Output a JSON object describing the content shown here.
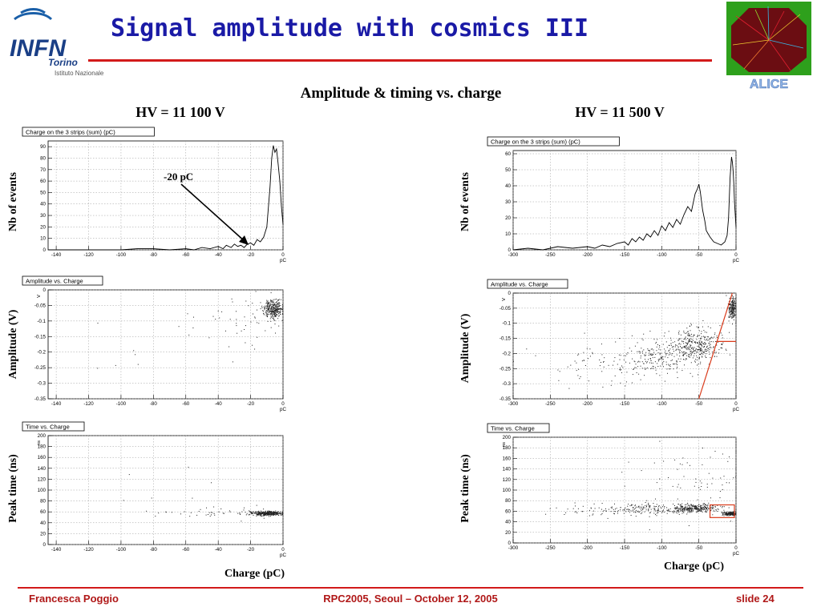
{
  "slide": {
    "title": "Signal amplitude with cosmics III",
    "header_center": "Amplitude & timing vs. charge",
    "hv_left": "HV = 11 100 V",
    "hv_right": "HV = 11 500 V",
    "annotation": "-20 pC",
    "ylabel_events": "Nb of events",
    "ylabel_amplitude": "Amplitude (V)",
    "ylabel_time": "Peak time (ns)",
    "xlabel_charge": "Charge (pC)",
    "footer_author": "Francesca Poggio",
    "footer_conference": "RPC2005, Seoul – October 12, 2005",
    "footer_slide": "slide 24",
    "logo_infn": "INFN Torino Istituto Nazionale",
    "logo_alice": "ALICE"
  },
  "colors": {
    "title": "#1a1aa6",
    "accent_red": "#d21a1a",
    "footer": "#b01818",
    "plot_line": "#000000",
    "box_red": "#d93a1a"
  },
  "chart_data": [
    {
      "id": "hist_left",
      "type": "line",
      "title": "Charge on the 3 strips (sum)  (pC)",
      "xlabel": "pC",
      "ylabel": "",
      "xlim": [
        -145,
        0
      ],
      "ylim": [
        0,
        95
      ],
      "xticks": [
        -140,
        -120,
        -100,
        -80,
        -60,
        -40,
        -20,
        0
      ],
      "yticks": [
        0,
        10,
        20,
        30,
        40,
        50,
        60,
        70,
        80,
        90
      ],
      "grid": true,
      "x": [
        -145,
        -130,
        -115,
        -100,
        -90,
        -80,
        -70,
        -60,
        -55,
        -50,
        -45,
        -40,
        -37,
        -35,
        -32,
        -30,
        -28,
        -26,
        -24,
        -22,
        -20,
        -18,
        -16,
        -14,
        -12,
        -10,
        -8,
        -7,
        -6,
        -5,
        -4,
        -3,
        -2,
        -1,
        0
      ],
      "y": [
        0,
        0,
        0,
        0,
        1,
        1,
        0,
        1,
        0,
        2,
        1,
        3,
        1,
        4,
        2,
        5,
        3,
        4,
        2,
        5,
        6,
        4,
        9,
        7,
        11,
        20,
        55,
        80,
        91,
        85,
        88,
        75,
        60,
        38,
        22
      ]
    },
    {
      "id": "hist_right",
      "type": "line",
      "title": "Charge on the 3 strips (sum)  (pC)",
      "xlabel": "pC",
      "ylabel": "",
      "xlim": [
        -300,
        0
      ],
      "ylim": [
        0,
        62
      ],
      "xticks": [
        -300,
        -250,
        -200,
        -150,
        -100,
        -50,
        0
      ],
      "yticks": [
        0,
        10,
        20,
        30,
        40,
        50,
        60
      ],
      "grid": true,
      "x": [
        -300,
        -280,
        -260,
        -240,
        -220,
        -200,
        -190,
        -180,
        -170,
        -160,
        -150,
        -145,
        -140,
        -135,
        -130,
        -125,
        -120,
        -115,
        -110,
        -105,
        -100,
        -95,
        -90,
        -85,
        -80,
        -75,
        -70,
        -65,
        -60,
        -55,
        -52,
        -50,
        -48,
        -45,
        -42,
        -40,
        -35,
        -30,
        -25,
        -20,
        -15,
        -12,
        -10,
        -8,
        -6,
        -5,
        -4,
        -3,
        -2,
        0
      ],
      "y": [
        0,
        1,
        0,
        2,
        1,
        2,
        1,
        3,
        2,
        4,
        5,
        3,
        7,
        5,
        8,
        6,
        10,
        8,
        12,
        9,
        15,
        12,
        17,
        14,
        19,
        16,
        22,
        27,
        24,
        35,
        38,
        41,
        36,
        25,
        18,
        12,
        8,
        5,
        4,
        3,
        5,
        9,
        20,
        45,
        58,
        55,
        50,
        42,
        30,
        14
      ]
    },
    {
      "id": "amp_left",
      "type": "scatter",
      "title": "Amplitude vs. Charge",
      "xlabel": "pC",
      "ylabel": "V",
      "xlim": [
        -145,
        0
      ],
      "ylim": [
        -0.35,
        0
      ],
      "xticks": [
        -140,
        -120,
        -100,
        -80,
        -60,
        -40,
        -20,
        0
      ],
      "yticks": [
        0,
        -0.05,
        -0.1,
        -0.15,
        -0.2,
        -0.25,
        -0.3,
        -0.35
      ],
      "grid": true,
      "clusters": [
        {
          "cx": -6,
          "cy": -0.06,
          "sx": 3,
          "sy": 0.015,
          "n": 320
        },
        {
          "cx": -25,
          "cy": -0.1,
          "sx": 14,
          "sy": 0.04,
          "n": 45
        },
        {
          "cx": -70,
          "cy": -0.15,
          "sx": 30,
          "sy": 0.06,
          "n": 12
        }
      ]
    },
    {
      "id": "amp_right",
      "type": "scatter",
      "title": "Amplitude vs. Charge",
      "xlabel": "pC",
      "ylabel": "V",
      "xlim": [
        -300,
        0
      ],
      "ylim": [
        -0.35,
        0
      ],
      "xticks": [
        -300,
        -250,
        -200,
        -150,
        -100,
        -50,
        0
      ],
      "yticks": [
        0,
        -0.05,
        -0.1,
        -0.15,
        -0.2,
        -0.25,
        -0.3,
        -0.35
      ],
      "grid": true,
      "clusters": [
        {
          "cx": -5,
          "cy": -0.05,
          "sx": 3,
          "sy": 0.02,
          "n": 200
        },
        {
          "cx": -55,
          "cy": -0.17,
          "sx": 18,
          "sy": 0.03,
          "n": 360
        },
        {
          "cx": -110,
          "cy": -0.21,
          "sx": 30,
          "sy": 0.03,
          "n": 220
        },
        {
          "cx": -190,
          "cy": -0.24,
          "sx": 40,
          "sy": 0.04,
          "n": 60
        }
      ],
      "overlay_lines": [
        {
          "x": [
            -50,
            -5
          ],
          "y": [
            -0.35,
            0
          ]
        },
        {
          "x": [
            -25,
            0
          ],
          "y": [
            -0.16,
            -0.16
          ]
        }
      ]
    },
    {
      "id": "time_left",
      "type": "scatter",
      "title": "Time vs. Charge",
      "xlabel": "pC",
      "ylabel": "ns",
      "xlim": [
        -145,
        0
      ],
      "ylim": [
        0,
        200
      ],
      "xticks": [
        -140,
        -120,
        -100,
        -80,
        -60,
        -40,
        -20,
        0
      ],
      "yticks": [
        0,
        20,
        40,
        60,
        80,
        100,
        120,
        140,
        160,
        180,
        200
      ],
      "grid": true,
      "clusters": [
        {
          "cx": -10,
          "cy": 58,
          "sx": 5,
          "sy": 2,
          "n": 360
        },
        {
          "cx": -40,
          "cy": 60,
          "sx": 20,
          "sy": 4,
          "n": 40
        },
        {
          "cx": -70,
          "cy": 80,
          "sx": 30,
          "sy": 40,
          "n": 12
        }
      ]
    },
    {
      "id": "time_right",
      "type": "scatter",
      "title": "Time vs. Charge",
      "xlabel": "pC",
      "ylabel": "ns",
      "xlim": [
        -300,
        0
      ],
      "ylim": [
        0,
        200
      ],
      "xticks": [
        -300,
        -250,
        -200,
        -150,
        -100,
        -50,
        0
      ],
      "yticks": [
        0,
        20,
        40,
        60,
        80,
        100,
        120,
        140,
        160,
        180,
        200
      ],
      "grid": true,
      "clusters": [
        {
          "cx": -8,
          "cy": 56,
          "sx": 5,
          "sy": 2,
          "n": 200
        },
        {
          "cx": -55,
          "cy": 66,
          "sx": 15,
          "sy": 4,
          "n": 260
        },
        {
          "cx": -110,
          "cy": 65,
          "sx": 35,
          "sy": 5,
          "n": 180
        },
        {
          "cx": -180,
          "cy": 62,
          "sx": 50,
          "sy": 6,
          "n": 60
        },
        {
          "cx": -50,
          "cy": 120,
          "sx": 50,
          "sy": 45,
          "n": 90
        }
      ],
      "overlay_box": {
        "x": [
          -35,
          0
        ],
        "y": [
          48,
          72
        ]
      }
    }
  ]
}
